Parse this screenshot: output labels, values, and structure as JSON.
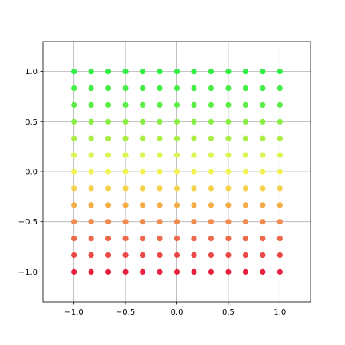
{
  "chart_data": {
    "type": "scatter",
    "title": "",
    "xlabel": "",
    "ylabel": "",
    "xlim": [
      -1.3,
      1.3
    ],
    "ylim": [
      -1.3,
      1.3
    ],
    "grid": true,
    "x_ticks": [
      -1.0,
      -0.5,
      0.0,
      0.5,
      1.0
    ],
    "y_ticks": [
      -1.0,
      -0.5,
      0.0,
      0.5,
      1.0
    ],
    "x_tick_labels": [
      "−1.0",
      "−0.5",
      "0.0",
      "0.5",
      "1.0"
    ],
    "y_tick_labels": [
      "−1.0",
      "−0.5",
      "0.0",
      "0.5",
      "1.0"
    ],
    "x": [
      -1.0,
      -0.8333,
      -0.6667,
      -0.5,
      -0.3333,
      -0.1667,
      0.0,
      0.1667,
      0.3333,
      0.5,
      0.6667,
      0.8333,
      1.0
    ],
    "y": [
      1.0,
      0.8333,
      0.6667,
      0.5,
      0.3333,
      0.1667,
      0.0,
      -0.1667,
      -0.3333,
      -0.5,
      -0.6667,
      -0.8333,
      -1.0
    ],
    "row_colors": [
      "#33ee44",
      "#44ee44",
      "#5ded48",
      "#88ee44",
      "#aaee44",
      "#ddf455",
      "#f1f253",
      "#f6d24c",
      "#f4ac47",
      "#ef8c4f",
      "#ec6a4b",
      "#ea4a45",
      "#e8213f"
    ],
    "marker": "circle"
  }
}
